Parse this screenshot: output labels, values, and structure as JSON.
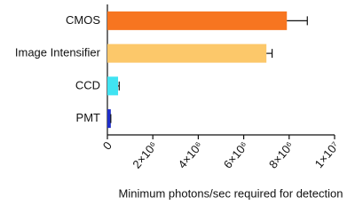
{
  "chart_data": {
    "type": "hbar",
    "xlabel": "Minimum photons/sec required for detection",
    "categories": [
      "CMOS",
      "Image Intensifier",
      "CCD",
      "PMT"
    ],
    "values": [
      7900000,
      7000000,
      470000,
      150000
    ],
    "errors": [
      900000,
      250000,
      50000,
      0
    ],
    "colors": [
      "#f77520",
      "#fcc86a",
      "#40e3f2",
      "#1f2ecb"
    ],
    "xlim": [
      0,
      10000000
    ],
    "xticks": [
      0,
      {
        "value": 2000000,
        "label": "2×10⁶"
      },
      {
        "value": 4000000,
        "label": "4×10⁶"
      },
      {
        "value": 6000000,
        "label": "6×10⁶"
      },
      {
        "value": 8000000,
        "label": "8×10⁶"
      },
      {
        "value": 10000000,
        "label": "1×10⁷"
      }
    ]
  }
}
